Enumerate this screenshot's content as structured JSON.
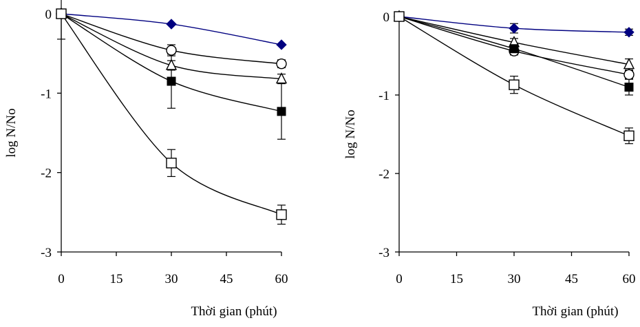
{
  "chart_data": [
    {
      "type": "line",
      "xlabel": "Thời gian (phút)",
      "ylabel": "log N/No",
      "xlim": [
        0,
        60
      ],
      "ylim": [
        -3,
        0
      ],
      "xticks": [
        0,
        15,
        30,
        45,
        60
      ],
      "yticks": [
        0,
        -1,
        -2,
        -3
      ],
      "x": [
        0,
        30,
        60
      ],
      "series": [
        {
          "marker": "filled-diamond",
          "color": "#000080",
          "values": [
            0,
            -0.13,
            -0.39
          ],
          "errors": [
            0,
            0,
            0
          ]
        },
        {
          "marker": "open-circle",
          "color": "#000000",
          "values": [
            0,
            -0.46,
            -0.63
          ],
          "errors": [
            0,
            0.07,
            0.05
          ]
        },
        {
          "marker": "open-triangle",
          "color": "#000000",
          "values": [
            0,
            -0.65,
            -0.82
          ],
          "errors": [
            0,
            0.06,
            0.06
          ]
        },
        {
          "marker": "filled-square",
          "color": "#000000",
          "values": [
            0,
            -0.85,
            -1.23
          ],
          "errors": [
            0.32,
            0.34,
            0.35
          ]
        },
        {
          "marker": "open-square",
          "color": "#000000",
          "values": [
            0,
            -1.88,
            -2.53
          ],
          "errors": [
            0,
            0.17,
            0.12
          ]
        }
      ]
    },
    {
      "type": "line",
      "xlabel": "Thời gian (phút)",
      "ylabel": "log N/No",
      "xlim": [
        0,
        60
      ],
      "ylim": [
        -3,
        0
      ],
      "xticks": [
        0,
        15,
        30,
        45,
        60
      ],
      "yticks": [
        0,
        -1,
        -2,
        -3
      ],
      "x": [
        0,
        30,
        60
      ],
      "series": [
        {
          "marker": "filled-diamond",
          "color": "#000080",
          "values": [
            0,
            -0.15,
            -0.2
          ],
          "errors": [
            0,
            0.06,
            0.04
          ]
        },
        {
          "marker": "open-triangle",
          "color": "#000000",
          "values": [
            0,
            -0.33,
            -0.61
          ],
          "errors": [
            0,
            0.05,
            0.07
          ]
        },
        {
          "marker": "open-circle",
          "color": "#000000",
          "values": [
            0,
            -0.44,
            -0.74
          ],
          "errors": [
            0,
            0.05,
            0.05
          ]
        },
        {
          "marker": "filled-square",
          "color": "#000000",
          "values": [
            0,
            -0.41,
            -0.9
          ],
          "errors": [
            0,
            0.05,
            0.1
          ]
        },
        {
          "marker": "open-square",
          "color": "#000000",
          "values": [
            0,
            -0.87,
            -1.52
          ],
          "errors": [
            0,
            0.11,
            0.1
          ]
        }
      ]
    }
  ]
}
